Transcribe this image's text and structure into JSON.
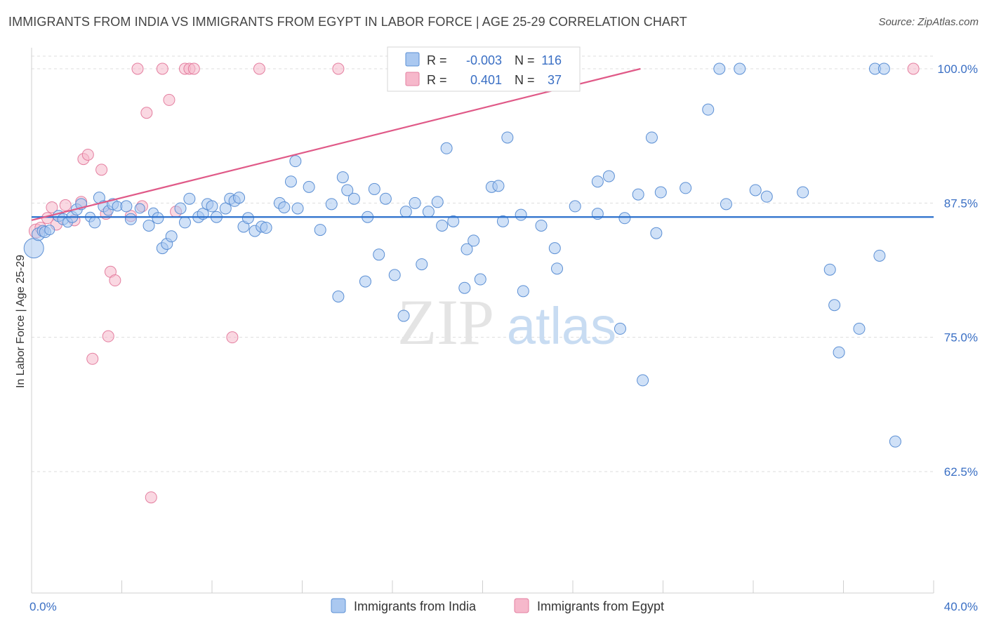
{
  "title": "IMMIGRANTS FROM INDIA VS IMMIGRANTS FROM EGYPT IN LABOR FORCE | AGE 25-29 CORRELATION CHART",
  "source": "Source: ZipAtlas.com",
  "watermark": {
    "zip": "ZIP",
    "atlas": "atlas"
  },
  "colors": {
    "india_fill": "#aac8f0",
    "india_stroke": "#5b8fd4",
    "india_line": "#2a6fcc",
    "egypt_fill": "#f6b8cb",
    "egypt_stroke": "#e47fa0",
    "egypt_line": "#e05a88",
    "axis_text": "#3a6fc4",
    "grid": "#dddddd"
  },
  "legend": {
    "india": {
      "r_label": "R =",
      "r_value": "-0.003",
      "n_label": "N =",
      "n_value": "116"
    },
    "egypt": {
      "r_label": "R =",
      "r_value": "0.401",
      "n_label": "N =",
      "n_value": "37"
    }
  },
  "chart_data": {
    "type": "scatter",
    "title": "IMMIGRANTS FROM INDIA VS IMMIGRANTS FROM EGYPT IN LABOR FORCE | AGE 25-29 CORRELATION CHART",
    "xlabel": "",
    "ylabel": "In Labor Force | Age 25-29",
    "xlim": [
      0,
      40
    ],
    "ylim": [
      51.2,
      102.5
    ],
    "x_tick_labels": [
      "0.0%",
      "40.0%"
    ],
    "y_ticks": [
      62.5,
      75.0,
      87.5,
      100.0
    ],
    "y_tick_labels": [
      "62.5%",
      "75.0%",
      "87.5%",
      "100.0%"
    ],
    "legend_position": "bottom-center",
    "series": [
      {
        "name": "Immigrants from India",
        "trend": {
          "x": [
            0,
            40
          ],
          "y": [
            86.2,
            86.2
          ]
        },
        "points": [
          [
            0.1,
            83.3,
            14
          ],
          [
            0.3,
            84.6,
            9
          ],
          [
            0.5,
            84.9,
            8
          ],
          [
            0.6,
            84.8,
            8
          ],
          [
            0.8,
            85.0,
            7
          ],
          [
            1.2,
            86.3,
            8
          ],
          [
            1.4,
            86.0,
            8
          ],
          [
            1.6,
            85.7,
            7
          ],
          [
            1.8,
            86.2,
            8
          ],
          [
            2.0,
            86.9,
            8
          ],
          [
            2.2,
            87.4,
            8
          ],
          [
            2.6,
            86.2,
            7
          ],
          [
            2.8,
            85.7,
            8
          ],
          [
            3.0,
            88.0,
            8
          ],
          [
            3.2,
            87.2,
            8
          ],
          [
            3.4,
            86.8,
            7
          ],
          [
            3.6,
            87.4,
            8
          ],
          [
            3.8,
            87.2,
            7
          ],
          [
            4.2,
            87.2,
            8
          ],
          [
            4.4,
            86.0,
            8
          ],
          [
            4.8,
            87.0,
            7
          ],
          [
            5.2,
            85.4,
            8
          ],
          [
            5.4,
            86.6,
            7
          ],
          [
            5.6,
            86.1,
            8
          ],
          [
            5.8,
            83.3,
            8
          ],
          [
            6.0,
            83.7,
            8
          ],
          [
            6.2,
            84.4,
            8
          ],
          [
            6.6,
            87.0,
            8
          ],
          [
            6.8,
            85.7,
            8
          ],
          [
            7.0,
            87.9,
            8
          ],
          [
            7.4,
            86.2,
            8
          ],
          [
            7.6,
            86.5,
            8
          ],
          [
            7.8,
            87.4,
            8
          ],
          [
            8.0,
            87.2,
            8
          ],
          [
            8.2,
            86.2,
            8
          ],
          [
            8.6,
            87.0,
            8
          ],
          [
            8.8,
            87.9,
            8
          ],
          [
            9.0,
            87.7,
            8
          ],
          [
            9.2,
            88.0,
            8
          ],
          [
            9.4,
            85.3,
            8
          ],
          [
            9.6,
            86.1,
            8
          ],
          [
            9.9,
            84.9,
            8
          ],
          [
            10.2,
            85.3,
            8
          ],
          [
            10.4,
            85.2,
            8
          ],
          [
            11.0,
            87.5,
            8
          ],
          [
            11.2,
            87.1,
            8
          ],
          [
            11.5,
            89.5,
            8
          ],
          [
            11.7,
            91.4,
            8
          ],
          [
            11.8,
            87.0,
            8
          ],
          [
            12.3,
            89.0,
            8
          ],
          [
            12.8,
            85.0,
            8
          ],
          [
            13.3,
            87.4,
            8
          ],
          [
            13.6,
            78.8,
            8
          ],
          [
            13.8,
            89.9,
            8
          ],
          [
            14.0,
            88.7,
            8
          ],
          [
            14.3,
            87.9,
            8
          ],
          [
            14.8,
            80.2,
            8
          ],
          [
            14.9,
            86.2,
            8
          ],
          [
            15.2,
            88.8,
            8
          ],
          [
            15.4,
            82.7,
            8
          ],
          [
            15.7,
            87.9,
            8
          ],
          [
            16.1,
            80.8,
            8
          ],
          [
            16.5,
            77.0,
            8
          ],
          [
            16.6,
            86.7,
            8
          ],
          [
            17.0,
            87.5,
            8
          ],
          [
            17.3,
            81.8,
            8
          ],
          [
            17.6,
            86.7,
            8
          ],
          [
            18.0,
            87.6,
            8
          ],
          [
            18.2,
            85.4,
            8
          ],
          [
            18.4,
            92.6,
            8
          ],
          [
            18.7,
            85.8,
            8
          ],
          [
            19.2,
            79.6,
            8
          ],
          [
            19.3,
            83.2,
            8
          ],
          [
            19.6,
            84.0,
            8
          ],
          [
            19.9,
            80.4,
            8
          ],
          [
            20.4,
            89.0,
            8
          ],
          [
            20.7,
            89.1,
            8
          ],
          [
            20.9,
            85.8,
            8
          ],
          [
            21.1,
            93.6,
            8
          ],
          [
            21.7,
            86.4,
            8
          ],
          [
            21.8,
            79.3,
            8
          ],
          [
            22.6,
            85.4,
            8
          ],
          [
            23.2,
            83.3,
            8
          ],
          [
            23.3,
            81.4,
            8
          ],
          [
            24.1,
            87.2,
            8
          ],
          [
            25.1,
            86.5,
            8
          ],
          [
            25.1,
            89.5,
            8
          ],
          [
            25.6,
            90.0,
            8
          ],
          [
            26.1,
            75.8,
            8
          ],
          [
            26.3,
            86.1,
            8
          ],
          [
            26.9,
            88.3,
            8
          ],
          [
            27.1,
            71.0,
            8
          ],
          [
            27.5,
            93.6,
            8
          ],
          [
            27.7,
            84.7,
            8
          ],
          [
            27.9,
            88.5,
            8
          ],
          [
            29.0,
            88.9,
            8
          ],
          [
            30.0,
            96.2,
            8
          ],
          [
            30.5,
            100.0,
            8
          ],
          [
            30.8,
            87.4,
            8
          ],
          [
            31.4,
            100.0,
            8
          ],
          [
            32.1,
            88.7,
            8
          ],
          [
            32.6,
            88.1,
            8
          ],
          [
            34.2,
            88.5,
            8
          ],
          [
            35.4,
            81.3,
            8
          ],
          [
            35.6,
            78.0,
            8
          ],
          [
            35.8,
            73.6,
            8
          ],
          [
            36.7,
            75.8,
            8
          ],
          [
            37.4,
            100.0,
            8
          ],
          [
            37.6,
            82.6,
            8
          ],
          [
            37.8,
            100.0,
            8
          ],
          [
            38.3,
            65.3,
            8
          ]
        ]
      },
      {
        "name": "Immigrants from Egypt",
        "trend": {
          "x": [
            0,
            27
          ],
          "y": [
            85.9,
            100.0
          ]
        },
        "points": [
          [
            0.2,
            84.9,
            10
          ],
          [
            0.4,
            85.2,
            8
          ],
          [
            0.7,
            86.1,
            8
          ],
          [
            0.9,
            87.1,
            8
          ],
          [
            1.1,
            85.5,
            8
          ],
          [
            1.5,
            87.3,
            8
          ],
          [
            1.9,
            85.9,
            8
          ],
          [
            2.2,
            87.6,
            8
          ],
          [
            2.3,
            91.6,
            8
          ],
          [
            2.5,
            92.0,
            8
          ],
          [
            3.1,
            90.6,
            8
          ],
          [
            3.3,
            86.5,
            8
          ],
          [
            3.5,
            81.1,
            8
          ],
          [
            3.7,
            80.3,
            8
          ],
          [
            3.4,
            75.1,
            8
          ],
          [
            2.7,
            73.0,
            8
          ],
          [
            4.4,
            86.3,
            8
          ],
          [
            4.9,
            87.2,
            8
          ],
          [
            4.7,
            100.0,
            8
          ],
          [
            5.1,
            95.9,
            8
          ],
          [
            5.3,
            60.1,
            8
          ],
          [
            5.8,
            100.0,
            8
          ],
          [
            6.1,
            97.1,
            8
          ],
          [
            6.4,
            86.7,
            8
          ],
          [
            6.8,
            100.0,
            8
          ],
          [
            7.0,
            100.0,
            8
          ],
          [
            7.2,
            100.0,
            8
          ],
          [
            8.9,
            75.0,
            8
          ],
          [
            10.1,
            100.0,
            8
          ],
          [
            13.6,
            100.0,
            8
          ],
          [
            39.1,
            100.0,
            8
          ]
        ]
      }
    ]
  },
  "bottom_legend": [
    "Immigrants from India",
    "Immigrants from Egypt"
  ]
}
